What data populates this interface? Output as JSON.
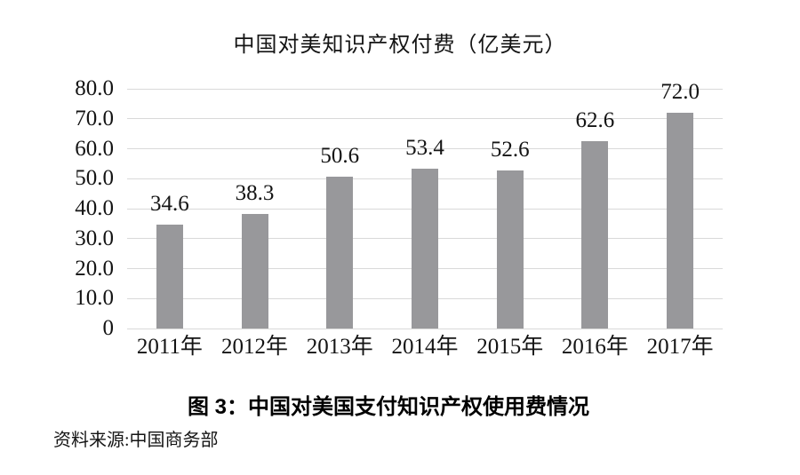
{
  "figure": {
    "caption": "图 3：中国对美国支付知识产权使用费情况",
    "source": "资料来源:中国商务部"
  },
  "chart_data": {
    "type": "bar",
    "title": "中国对美知识产权付费（亿美元）",
    "categories": [
      "2011年",
      "2012年",
      "2013年",
      "2014年",
      "2015年",
      "2016年",
      "2017年"
    ],
    "values": [
      34.6,
      38.3,
      50.6,
      53.4,
      52.6,
      62.6,
      72.0
    ],
    "value_labels": [
      "34.6",
      "38.3",
      "50.6",
      "53.4",
      "52.6",
      "62.6",
      "72.0"
    ],
    "xlabel": "",
    "ylabel": "",
    "ylim": [
      0,
      80
    ],
    "yticks": [
      0,
      10,
      20,
      30,
      40,
      50,
      60,
      70,
      80
    ],
    "ytick_labels": [
      "0",
      "10.0",
      "20.0",
      "30.0",
      "40.0",
      "50.0",
      "60.0",
      "70.0",
      "80.0"
    ],
    "grid": true,
    "legend": "none",
    "bar_color": "#98989b",
    "gridline_color": "#d9d9d9",
    "text_color": "#141414",
    "background": "#ffffff"
  }
}
